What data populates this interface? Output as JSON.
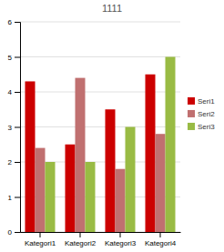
{
  "chart_data": {
    "type": "bar",
    "title": "1111",
    "categories": [
      "Kategori1",
      "Kategori2",
      "Kategori3",
      "Kategori4"
    ],
    "series": [
      {
        "name": "Seri1",
        "color": "#CC0000",
        "values": [
          4.3,
          2.5,
          3.5,
          4.5
        ]
      },
      {
        "name": "Seri2",
        "color": "#C07070",
        "values": [
          2.4,
          4.4,
          1.8,
          2.8
        ]
      },
      {
        "name": "Seri3",
        "color": "#99BB44",
        "values": [
          2.0,
          2.0,
          3.0,
          5.0
        ]
      }
    ],
    "ylim": [
      0,
      6
    ],
    "yticks": [
      0,
      1,
      2,
      3,
      4,
      5,
      6
    ],
    "grid": true,
    "legend": "right"
  }
}
